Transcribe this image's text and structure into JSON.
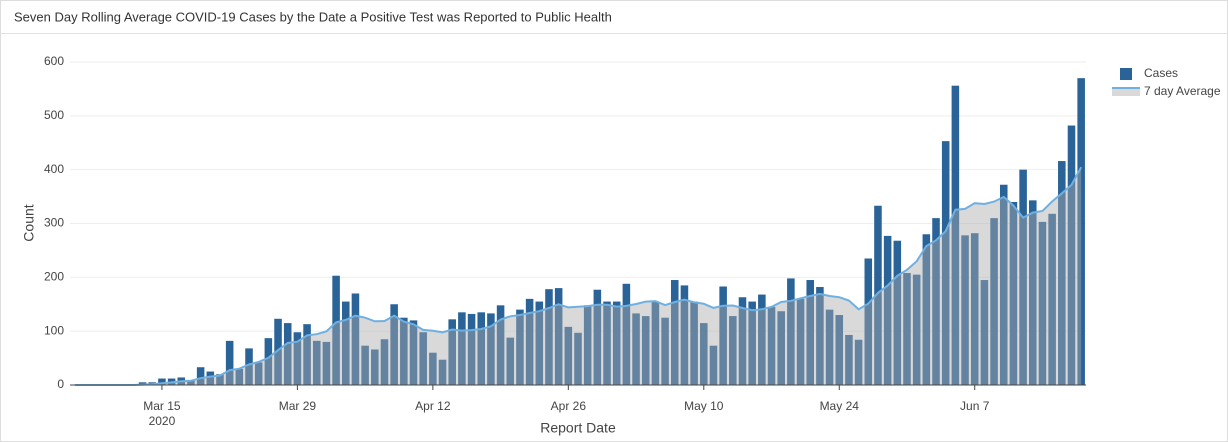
{
  "chart_data": {
    "type": "bar",
    "title": "Seven Day Rolling Average COVID-19 Cases by the Date a Positive Test was Reported to Public Health",
    "x_label": "Report Date",
    "y_label": "Count",
    "x": [
      "2020-03-06",
      "2020-03-07",
      "2020-03-08",
      "2020-03-09",
      "2020-03-10",
      "2020-03-11",
      "2020-03-12",
      "2020-03-13",
      "2020-03-14",
      "2020-03-15",
      "2020-03-16",
      "2020-03-17",
      "2020-03-18",
      "2020-03-19",
      "2020-03-20",
      "2020-03-21",
      "2020-03-22",
      "2020-03-23",
      "2020-03-24",
      "2020-03-25",
      "2020-03-26",
      "2020-03-27",
      "2020-03-28",
      "2020-03-29",
      "2020-03-30",
      "2020-03-31",
      "2020-04-01",
      "2020-04-02",
      "2020-04-03",
      "2020-04-04",
      "2020-04-05",
      "2020-04-06",
      "2020-04-07",
      "2020-04-08",
      "2020-04-09",
      "2020-04-10",
      "2020-04-11",
      "2020-04-12",
      "2020-04-13",
      "2020-04-14",
      "2020-04-15",
      "2020-04-16",
      "2020-04-17",
      "2020-04-18",
      "2020-04-19",
      "2020-04-20",
      "2020-04-21",
      "2020-04-22",
      "2020-04-23",
      "2020-04-24",
      "2020-04-25",
      "2020-04-26",
      "2020-04-27",
      "2020-04-28",
      "2020-04-29",
      "2020-04-30",
      "2020-05-01",
      "2020-05-02",
      "2020-05-03",
      "2020-05-04",
      "2020-05-05",
      "2020-05-06",
      "2020-05-07",
      "2020-05-08",
      "2020-05-09",
      "2020-05-10",
      "2020-05-11",
      "2020-05-12",
      "2020-05-13",
      "2020-05-14",
      "2020-05-15",
      "2020-05-16",
      "2020-05-17",
      "2020-05-18",
      "2020-05-19",
      "2020-05-20",
      "2020-05-21",
      "2020-05-22",
      "2020-05-23",
      "2020-05-24",
      "2020-05-25",
      "2020-05-26",
      "2020-05-27",
      "2020-05-28",
      "2020-05-29",
      "2020-05-30",
      "2020-05-31",
      "2020-06-01",
      "2020-06-02",
      "2020-06-03",
      "2020-06-04",
      "2020-06-05",
      "2020-06-06",
      "2020-06-07",
      "2020-06-08",
      "2020-06-09",
      "2020-06-10",
      "2020-06-11",
      "2020-06-12",
      "2020-06-13",
      "2020-06-14",
      "2020-06-15",
      "2020-06-16",
      "2020-06-17",
      "2020-06-18"
    ],
    "series": [
      {
        "name": "Cases",
        "type": "bar",
        "color": "#2a6397",
        "values": [
          0,
          0,
          0,
          0,
          0,
          0,
          0,
          5,
          5,
          12,
          12,
          14,
          8,
          33,
          25,
          20,
          82,
          30,
          68,
          42,
          87,
          123,
          115,
          98,
          113,
          82,
          80,
          203,
          155,
          170,
          73,
          66,
          85,
          150,
          125,
          120,
          98,
          60,
          47,
          122,
          135,
          132,
          135,
          133,
          148,
          88,
          140,
          160,
          155,
          178,
          180,
          108,
          97,
          148,
          177,
          155,
          155,
          188,
          133,
          128,
          155,
          125,
          195,
          185,
          155,
          115,
          73,
          183,
          128,
          163,
          155,
          168,
          145,
          137,
          198,
          160,
          195,
          182,
          140,
          130,
          93,
          84,
          235,
          333,
          277,
          268,
          208,
          205,
          280,
          310,
          453,
          556,
          278,
          282,
          195,
          310,
          372,
          340,
          400,
          343,
          303,
          318,
          416,
          482,
          570
        ]
      },
      {
        "name": "7 day Average",
        "type": "area",
        "color": "#6fb0e0",
        "values": [
          0,
          0,
          0,
          0,
          0,
          0,
          0,
          0.7,
          1.4,
          3.1,
          4.9,
          6.9,
          8,
          12.7,
          15.6,
          17.7,
          27.7,
          30.3,
          38,
          42.9,
          50.6,
          64.6,
          78.1,
          80.4,
          92.3,
          94.3,
          99.7,
          116.3,
          120.9,
          128.7,
          125.1,
          118.4,
          118.9,
          128.9,
          117.7,
          112.7,
          102.4,
          100.6,
          97.9,
          103.1,
          101,
          102,
          104.1,
          109.1,
          121.7,
          127.6,
          130.1,
          133.7,
          137,
          143.1,
          149.9,
          144.1,
          145.4,
          146.6,
          149,
          149,
          145.7,
          146.9,
          150.4,
          154.9,
          155.9,
          148.4,
          154.1,
          158.4,
          153.7,
          151.1,
          143.3,
          147.3,
          147.7,
          143.1,
          138.9,
          140.7,
          145,
          154.1,
          156.3,
          160.9,
          165.4,
          169.3,
          165.3,
          163.1,
          156.9,
          140.6,
          151.3,
          171,
          184.6,
          202.9,
          214,
          230,
          258,
          268.7,
          285.9,
          325.7,
          327.1,
          337.7,
          336.3,
          340.6,
          349.4,
          333.3,
          311,
          320.3,
          323.3,
          340.9,
          356,
          371.7,
          404.6
        ]
      }
    ],
    "xlim": [
      "2020-03-05T12:00",
      "2020-06-18T12:00"
    ],
    "xticks": [
      {
        "value": "2020-03-15",
        "label": "Mar 15\n2020"
      },
      {
        "value": "2020-03-29",
        "label": "Mar 29"
      },
      {
        "value": "2020-04-12",
        "label": "Apr 12"
      },
      {
        "value": "2020-04-26",
        "label": "Apr 26"
      },
      {
        "value": "2020-05-10",
        "label": "May 10"
      },
      {
        "value": "2020-05-24",
        "label": "May 24"
      },
      {
        "value": "2020-06-07",
        "label": "Jun 7"
      }
    ],
    "ylim": [
      0,
      600
    ],
    "yticks": [
      0,
      100,
      200,
      300,
      400,
      500,
      600
    ],
    "grid": true,
    "legend": "top-right"
  }
}
